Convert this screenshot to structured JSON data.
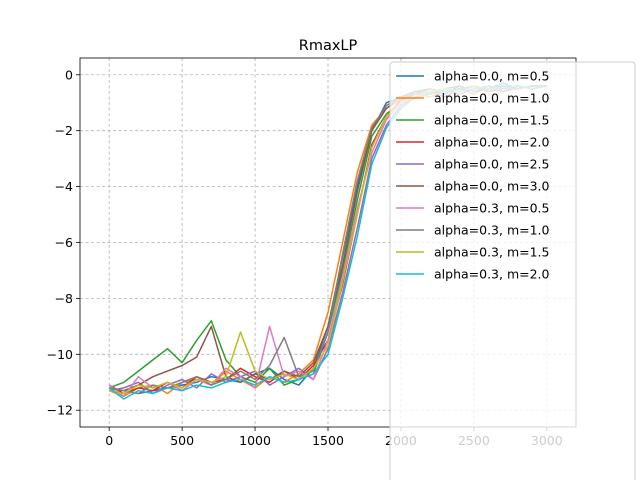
{
  "chart_data": {
    "type": "line",
    "title": "RmaxLP",
    "xlabel": "",
    "ylabel": "",
    "xlim": [
      -200,
      3200
    ],
    "ylim": [
      -12.6,
      0.6
    ],
    "xticks": [
      0,
      500,
      1000,
      1500,
      2000,
      2500,
      3000
    ],
    "yticks": [
      -12,
      -10,
      -8,
      -6,
      -4,
      -2,
      0
    ],
    "xtick_labels": [
      "0",
      "500",
      "1000",
      "1500",
      "2000",
      "2500",
      "3000"
    ],
    "ytick_labels": [
      "−12",
      "−10",
      "−8",
      "−6",
      "−4",
      "−2",
      "0"
    ],
    "grid": true,
    "grid_style": "dashed",
    "legend_placement": "right, overflowing bottom",
    "series": [
      {
        "name": "alpha=0.0, m=0.5",
        "color": "#1f77b4",
        "x": [
          0,
          100,
          200,
          300,
          400,
          500,
          600,
          700,
          800,
          900,
          1000,
          1100,
          1200,
          1300,
          1400,
          1500,
          1600,
          1700,
          1800,
          1900,
          2000,
          2100,
          2200,
          2300,
          2400,
          2500,
          2600,
          2700,
          2800,
          2900,
          3000
        ],
        "y": [
          -11.2,
          -11.3,
          -11.4,
          -11.3,
          -11.2,
          -11.1,
          -11.0,
          -10.8,
          -10.9,
          -11.0,
          -10.7,
          -10.5,
          -10.9,
          -11.1,
          -10.5,
          -9.0,
          -6.5,
          -4.0,
          -2.0,
          -1.0,
          -0.8,
          -0.6,
          -0.5,
          -0.7,
          -0.4,
          -0.6,
          -0.5,
          -0.3,
          -0.5,
          -0.4,
          -0.4
        ]
      },
      {
        "name": "alpha=0.0, m=1.0",
        "color": "#ff7f0e",
        "x": [
          0,
          100,
          200,
          300,
          400,
          500,
          600,
          700,
          800,
          900,
          1000,
          1100,
          1200,
          1300,
          1400,
          1500,
          1600,
          1700,
          1800,
          1900,
          2000,
          2100,
          2200,
          2300,
          2400,
          2500,
          2600,
          2700,
          2800,
          2900,
          3000
        ],
        "y": [
          -11.3,
          -11.5,
          -11.2,
          -11.1,
          -11.4,
          -11.0,
          -10.9,
          -11.1,
          -10.6,
          -10.9,
          -11.2,
          -10.8,
          -11.0,
          -10.7,
          -10.2,
          -8.5,
          -6.0,
          -3.5,
          -1.8,
          -1.2,
          -0.9,
          -0.7,
          -0.8,
          -0.6,
          -0.5,
          -0.7,
          -0.4,
          -0.6,
          -0.5,
          -0.4,
          -0.4
        ]
      },
      {
        "name": "alpha=0.0, m=1.5",
        "color": "#2ca02c",
        "x": [
          0,
          100,
          200,
          300,
          400,
          500,
          600,
          700,
          800,
          900,
          1000,
          1100,
          1200,
          1300,
          1400,
          1500,
          1600,
          1700,
          1800,
          1900,
          2000,
          2100,
          2200,
          2300,
          2400,
          2500,
          2600,
          2700,
          2800,
          2900,
          3000
        ],
        "y": [
          -11.2,
          -11.0,
          -10.6,
          -10.2,
          -9.8,
          -10.3,
          -9.5,
          -8.8,
          -10.2,
          -10.8,
          -11.0,
          -10.5,
          -11.1,
          -10.9,
          -10.7,
          -9.2,
          -7.0,
          -4.5,
          -2.2,
          -1.4,
          -1.0,
          -0.6,
          -0.7,
          -0.5,
          -0.6,
          -0.4,
          -0.5,
          -0.6,
          -0.4,
          -0.5,
          -0.4
        ]
      },
      {
        "name": "alpha=0.0, m=2.0",
        "color": "#d62728",
        "x": [
          0,
          100,
          200,
          300,
          400,
          500,
          600,
          700,
          800,
          900,
          1000,
          1100,
          1200,
          1300,
          1400,
          1500,
          1600,
          1700,
          1800,
          1900,
          2000,
          2100,
          2200,
          2300,
          2400,
          2500,
          2600,
          2700,
          2800,
          2900,
          3000
        ],
        "y": [
          -11.1,
          -11.4,
          -11.2,
          -11.3,
          -11.0,
          -11.2,
          -10.8,
          -11.0,
          -10.9,
          -10.5,
          -10.8,
          -11.0,
          -10.6,
          -10.9,
          -10.4,
          -9.5,
          -7.5,
          -5.0,
          -2.5,
          -1.5,
          -0.9,
          -0.7,
          -0.6,
          -0.8,
          -0.5,
          -0.4,
          -0.6,
          -0.5,
          -0.4,
          -0.5,
          -0.4
        ]
      },
      {
        "name": "alpha=0.0, m=2.5",
        "color": "#9467bd",
        "x": [
          0,
          100,
          200,
          300,
          400,
          500,
          600,
          700,
          800,
          900,
          1000,
          1100,
          1200,
          1300,
          1400,
          1500,
          1600,
          1700,
          1800,
          1900,
          2000,
          2100,
          2200,
          2300,
          2400,
          2500,
          2600,
          2700,
          2800,
          2900,
          3000
        ],
        "y": [
          -11.3,
          -11.2,
          -11.0,
          -11.4,
          -11.1,
          -10.9,
          -11.2,
          -10.7,
          -11.0,
          -10.8,
          -10.6,
          -11.1,
          -10.8,
          -10.5,
          -10.9,
          -9.8,
          -7.8,
          -5.5,
          -3.0,
          -1.8,
          -1.1,
          -0.8,
          -0.6,
          -0.5,
          -0.7,
          -0.5,
          -0.4,
          -0.6,
          -0.4,
          -0.5,
          -0.4
        ]
      },
      {
        "name": "alpha=0.0, m=3.0",
        "color": "#8c564b",
        "x": [
          0,
          100,
          200,
          300,
          400,
          500,
          600,
          700,
          800,
          900,
          1000,
          1100,
          1200,
          1300,
          1400,
          1500,
          1600,
          1700,
          1800,
          1900,
          2000,
          2100,
          2200,
          2300,
          2400,
          2500,
          2600,
          2700,
          2800,
          2900,
          3000
        ],
        "y": [
          -11.2,
          -11.3,
          -11.1,
          -10.8,
          -10.6,
          -10.4,
          -10.1,
          -9.0,
          -10.8,
          -11.0,
          -10.7,
          -10.9,
          -10.6,
          -10.8,
          -10.3,
          -9.0,
          -6.8,
          -4.2,
          -2.0,
          -1.2,
          -0.8,
          -0.6,
          -0.7,
          -0.5,
          -0.4,
          -0.6,
          -0.5,
          -0.4,
          -0.5,
          -0.4,
          -0.4
        ]
      },
      {
        "name": "alpha=0.3, m=0.5",
        "color": "#e377c2",
        "x": [
          0,
          100,
          200,
          300,
          400,
          500,
          600,
          700,
          800,
          900,
          1000,
          1100,
          1200,
          1300,
          1400,
          1500,
          1600,
          1700,
          1800,
          1900,
          2000,
          2100,
          2200,
          2300,
          2400,
          2500,
          2600,
          2700,
          2800,
          2900,
          3000
        ],
        "y": [
          -11.1,
          -11.5,
          -10.8,
          -11.2,
          -11.0,
          -11.3,
          -10.9,
          -11.1,
          -10.5,
          -10.8,
          -11.2,
          -9.0,
          -10.8,
          -10.6,
          -10.9,
          -9.5,
          -7.2,
          -4.8,
          -2.8,
          -1.6,
          -1.0,
          -0.7,
          -0.6,
          -0.5,
          -0.6,
          -0.5,
          -0.4,
          -0.5,
          -0.4,
          -0.5,
          -0.4
        ]
      },
      {
        "name": "alpha=0.3, m=1.0",
        "color": "#7f7f7f",
        "x": [
          0,
          100,
          200,
          300,
          400,
          500,
          600,
          700,
          800,
          900,
          1000,
          1100,
          1200,
          1300,
          1400,
          1500,
          1600,
          1700,
          1800,
          1900,
          2000,
          2100,
          2200,
          2300,
          2400,
          2500,
          2600,
          2700,
          2800,
          2900,
          3000
        ],
        "y": [
          -11.2,
          -11.3,
          -11.4,
          -11.1,
          -11.2,
          -11.0,
          -10.8,
          -11.1,
          -10.9,
          -10.6,
          -10.9,
          -10.4,
          -9.4,
          -10.8,
          -10.6,
          -9.2,
          -6.4,
          -3.8,
          -1.9,
          -1.1,
          -0.8,
          -0.7,
          -0.5,
          -0.6,
          -0.5,
          -0.4,
          -0.6,
          -0.4,
          -0.5,
          -0.4,
          -0.4
        ]
      },
      {
        "name": "alpha=0.3, m=1.5",
        "color": "#bcbd22",
        "x": [
          0,
          100,
          200,
          300,
          400,
          500,
          600,
          700,
          800,
          900,
          1000,
          1100,
          1200,
          1300,
          1400,
          1500,
          1600,
          1700,
          1800,
          1900,
          2000,
          2100,
          2200,
          2300,
          2400,
          2500,
          2600,
          2700,
          2800,
          2900,
          3000
        ],
        "y": [
          -11.3,
          -11.4,
          -11.1,
          -11.2,
          -11.0,
          -11.2,
          -10.9,
          -11.0,
          -10.8,
          -9.2,
          -10.6,
          -10.9,
          -10.7,
          -10.9,
          -10.5,
          -9.7,
          -7.4,
          -5.0,
          -2.6,
          -1.5,
          -1.0,
          -0.8,
          -0.6,
          -0.5,
          -0.6,
          -0.4,
          -0.5,
          -0.5,
          -0.4,
          -0.5,
          -0.4
        ]
      },
      {
        "name": "alpha=0.3, m=2.0",
        "color": "#17becf",
        "x": [
          0,
          100,
          200,
          300,
          400,
          500,
          600,
          700,
          800,
          900,
          1000,
          1100,
          1200,
          1300,
          1400,
          1500,
          1600,
          1700,
          1800,
          1900,
          2000,
          2100,
          2200,
          2300,
          2400,
          2500,
          2600,
          2700,
          2800,
          2900,
          3000
        ],
        "y": [
          -11.2,
          -11.6,
          -11.3,
          -11.4,
          -11.2,
          -11.3,
          -11.1,
          -11.2,
          -11.0,
          -10.9,
          -11.1,
          -10.8,
          -11.0,
          -10.9,
          -10.7,
          -10.0,
          -8.0,
          -5.8,
          -3.2,
          -1.9,
          -1.2,
          -0.8,
          -0.7,
          -0.6,
          -0.5,
          -0.6,
          -0.4,
          -0.5,
          -0.4,
          -0.5,
          -0.4
        ]
      }
    ]
  }
}
